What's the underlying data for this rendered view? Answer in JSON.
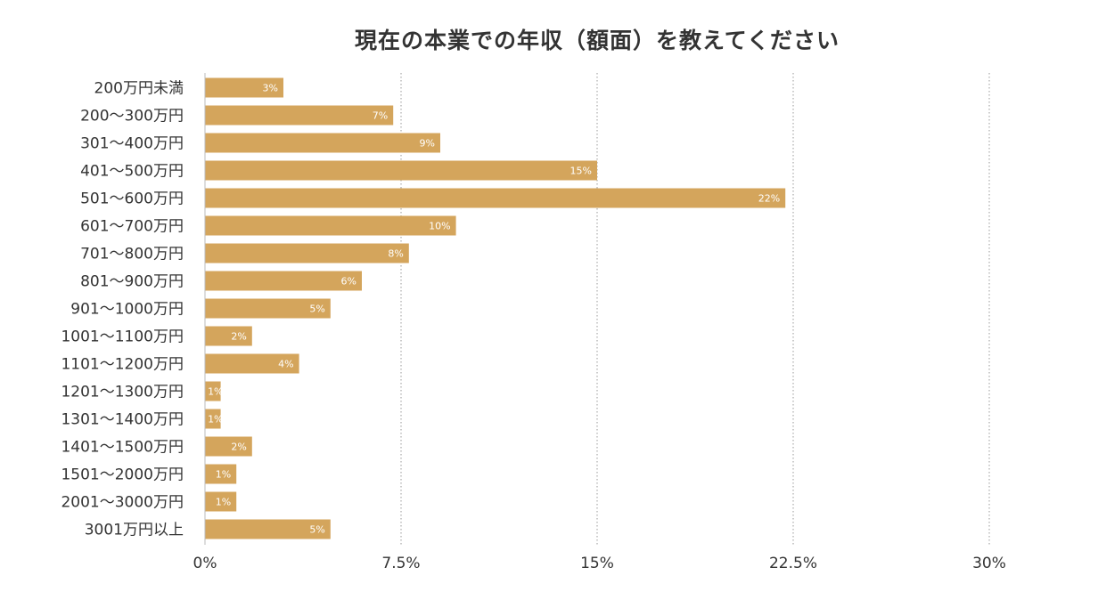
{
  "chart_data": {
    "type": "bar",
    "orientation": "horizontal",
    "title": "現在の本業での年収（額面）を教えてください",
    "categories": [
      "200万円未満",
      "200〜300万円",
      "301〜400万円",
      "401〜500万円",
      "501〜600万円",
      "601〜700万円",
      "701〜800万円",
      "801〜900万円",
      "901〜1000万円",
      "1001〜1100万円",
      "1101〜1200万円",
      "1201〜1300万円",
      "1301〜1400万円",
      "1401〜1500万円",
      "1501〜2000万円",
      "2001〜3000万円",
      "3001万円以上"
    ],
    "values": [
      3.0,
      7.2,
      9.0,
      15.0,
      22.2,
      9.6,
      7.8,
      6.0,
      4.8,
      1.8,
      3.6,
      0.6,
      0.6,
      1.8,
      1.2,
      1.2,
      4.8
    ],
    "data_labels": [
      "3%",
      "7%",
      "9%",
      "15%",
      "22%",
      "10%",
      "8%",
      "6%",
      "5%",
      "2%",
      "4%",
      "1%",
      "1%",
      "2%",
      "1%",
      "1%",
      "5%"
    ],
    "xlim": [
      0,
      30
    ],
    "xticks": [
      0,
      7.5,
      15,
      22.5,
      30
    ],
    "xtick_labels": [
      "0%",
      "7.5%",
      "15%",
      "22.5%",
      "30%"
    ],
    "xlabel": "",
    "ylabel": "",
    "grid": "vertical-dotted",
    "bar_color": "#d4a55c",
    "grid_color": "#9a9a9a",
    "axis_color": "#bbbbbb"
  }
}
